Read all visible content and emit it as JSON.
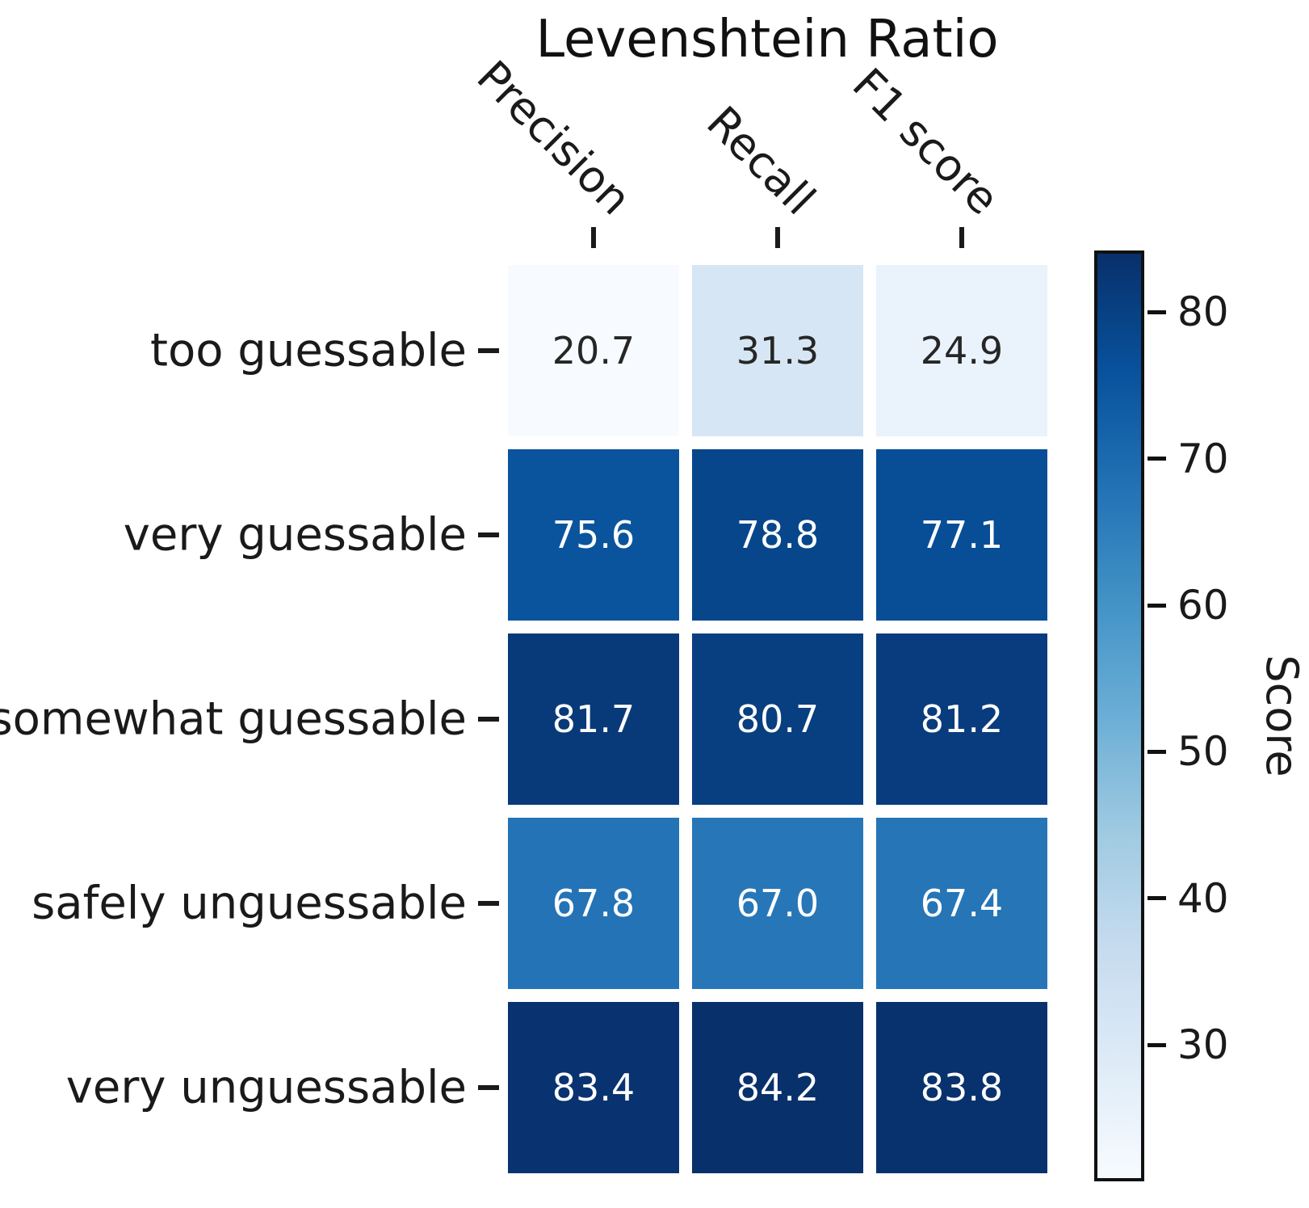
{
  "chart_data": {
    "type": "heatmap",
    "title": "Levenshtein Ratio",
    "columns": [
      "Precision",
      "Recall",
      "F1 score"
    ],
    "rows": [
      "too guessable",
      "very guessable",
      "somewhat guessable",
      "safely unguessable",
      "very unguessable"
    ],
    "values": [
      [
        20.7,
        31.3,
        24.9
      ],
      [
        75.6,
        78.8,
        77.1
      ],
      [
        81.7,
        80.7,
        81.2
      ],
      [
        67.8,
        67.0,
        67.4
      ],
      [
        83.4,
        84.2,
        83.8
      ]
    ],
    "value_format_decimals": 1,
    "colorbar": {
      "label": "Score",
      "ticks": [
        80,
        70,
        60,
        50,
        40,
        30
      ],
      "vmin": 20.7,
      "vmax": 84.2,
      "colormap": "Blues"
    },
    "legend_position": "right",
    "grid": false
  },
  "colors": {
    "background": "#ffffff",
    "text": "#1a1a1a",
    "annotation_dark": "#262626",
    "annotation_light": "#ffffff",
    "colormap_stops": [
      "#f7fbff",
      "#deebf7",
      "#c6dbef",
      "#9ecae1",
      "#6baed6",
      "#4292c6",
      "#2171b5",
      "#08519c",
      "#08306b"
    ]
  }
}
